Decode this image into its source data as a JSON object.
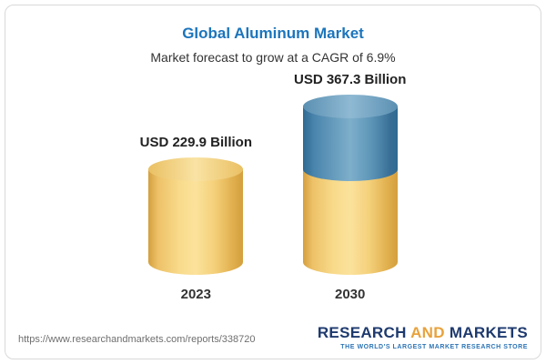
{
  "chart_data": {
    "type": "bar",
    "variant": "3d-cylinder",
    "title": "Global Aluminum Market",
    "subtitle": "Market forecast to grow at a CAGR of 6.9%",
    "categories": [
      "2023",
      "2030"
    ],
    "values": [
      229.9,
      367.3
    ],
    "value_labels": [
      "USD 229.9 Billion",
      "USD 367.3 Billion"
    ],
    "unit": "USD Billion",
    "cagr_percent": 6.9,
    "ylim": [
      0,
      367.3
    ],
    "legend": "none",
    "grid": false,
    "colors": {
      "base_segment": "#f5d37c",
      "growth_segment": "#6ea2c1"
    },
    "notes": "2030 cylinder shows the 2023 base value in yellow with incremental growth to 367.3 in blue on top"
  },
  "footer": {
    "url": "https://www.researchandmarkets.com/reports/338720",
    "logo": {
      "part1": "RESEARCH",
      "part2": "AND",
      "part3": "MARKETS",
      "tagline": "THE WORLD'S LARGEST MARKET RESEARCH STORE"
    }
  }
}
